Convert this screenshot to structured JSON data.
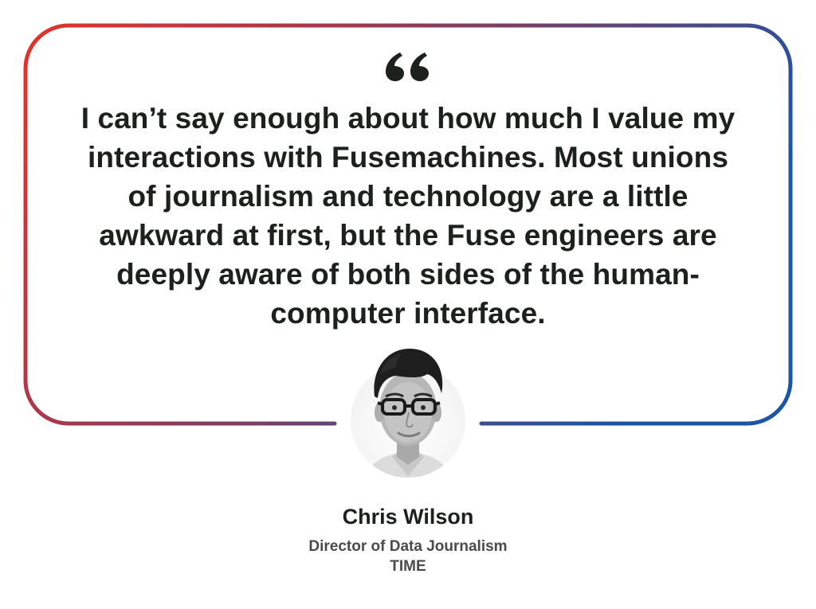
{
  "testimonial": {
    "quote": "I can’t say enough about how much I value my interactions with Fusemachines. Most unions of journalism and technology are a little awkward at first, but the Fuse engineers are deeply aware of both sides of the human-computer interface.",
    "author_name": "Chris Wilson",
    "author_title": "Director of Data Journalism",
    "author_company": "TIME"
  },
  "colors": {
    "gradient_start": "#e2342a",
    "gradient_end": "#1a55a6",
    "text": "#1c211d",
    "subtext": "#4a4a4a"
  },
  "icons": {
    "quote": "quote-mark-icon",
    "avatar": "person-photo"
  }
}
